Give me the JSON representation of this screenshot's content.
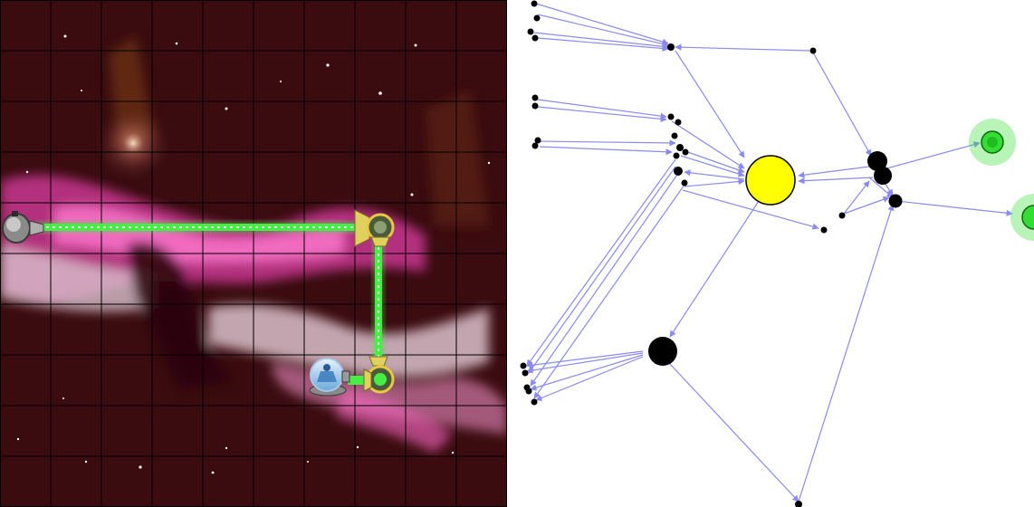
{
  "game": {
    "board": {
      "columns": 10,
      "rows": 10,
      "background": "#3a0c10",
      "grid_color": "#000000"
    },
    "beam_color": "#44ee44",
    "components": [
      {
        "name": "laser-emitter",
        "kind": "emitter",
        "col": 0,
        "row": 4
      },
      {
        "name": "mirror-top-right",
        "kind": "mirror",
        "col": 7,
        "row": 4
      },
      {
        "name": "mirror-bottom-right",
        "kind": "mirror",
        "col": 7,
        "row": 7
      },
      {
        "name": "alien-target-pod",
        "kind": "target",
        "col": 6,
        "row": 7
      }
    ]
  },
  "graph": {
    "edge_color": "#8a8af0",
    "node_color": "#000000",
    "focus_color": "#ffff00",
    "goal_color": "#33dd33"
  }
}
